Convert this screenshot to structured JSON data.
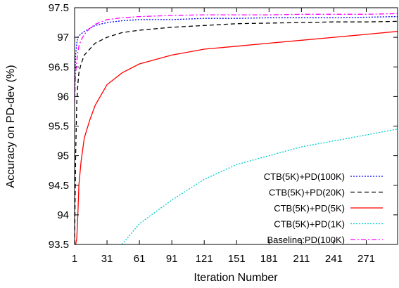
{
  "chart_data": {
    "type": "line",
    "xlabel": "Iteration Number",
    "ylabel": "Accuracy on PD-dev (%)",
    "xlim": [
      1,
      300
    ],
    "ylim": [
      93.5,
      97.5
    ],
    "x_ticks": [
      1,
      31,
      61,
      91,
      121,
      151,
      181,
      211,
      241,
      271
    ],
    "y_ticks": [
      93.5,
      94,
      94.5,
      95,
      95.5,
      96,
      96.5,
      97,
      97.5
    ],
    "x_tick_labels": [
      "1",
      "31",
      "61",
      "91",
      "121",
      "151",
      "181",
      "211",
      "241",
      "271"
    ],
    "y_tick_labels": [
      "93.5",
      "94",
      "94.5",
      "95",
      "95.5",
      "96",
      "96.5",
      "97",
      "97.5"
    ],
    "grid": false,
    "legend_position": "bottom-right",
    "x": [
      1,
      2,
      3,
      4,
      5,
      7,
      10,
      15,
      20,
      31,
      45,
      61,
      91,
      121,
      151,
      181,
      211,
      241,
      271,
      300
    ],
    "series": [
      {
        "name": "CTB(5K)+PD(100K)",
        "color": "#0000ff",
        "dash": "dotted",
        "values": [
          96.0,
          96.7,
          96.9,
          97.0,
          97.02,
          97.06,
          97.1,
          97.15,
          97.2,
          97.25,
          97.28,
          97.3,
          97.3,
          97.32,
          97.32,
          97.33,
          97.33,
          97.33,
          97.34,
          97.35
        ]
      },
      {
        "name": "CTB(5K)+PD(20K)",
        "color": "#000000",
        "dash": "dashed",
        "values": [
          93.5,
          95.0,
          95.9,
          96.2,
          96.4,
          96.55,
          96.7,
          96.8,
          96.9,
          97.0,
          97.08,
          97.12,
          97.17,
          97.2,
          97.23,
          97.24,
          97.25,
          97.26,
          97.26,
          97.27
        ]
      },
      {
        "name": "CTB(5K)+PD(5K)",
        "color": "#ff0000",
        "dash": "solid",
        "values": [
          93.5,
          93.5,
          93.6,
          94.0,
          94.5,
          94.9,
          95.3,
          95.6,
          95.85,
          96.2,
          96.4,
          96.55,
          96.7,
          96.8,
          96.85,
          96.9,
          96.95,
          97.0,
          97.05,
          97.1
        ]
      },
      {
        "name": "CTB(5K)+PD(1K)",
        "color": "#00cccc",
        "dash": "dotted",
        "values": [
          null,
          null,
          null,
          null,
          null,
          null,
          null,
          null,
          null,
          null,
          93.5,
          93.85,
          94.25,
          94.6,
          94.85,
          95.0,
          95.15,
          95.25,
          95.35,
          95.45
        ]
      },
      {
        "name": "Baseline:PD(100K)",
        "color": "#ff00ff",
        "dash": "dash-dot",
        "values": [
          95.9,
          96.4,
          96.6,
          96.75,
          96.85,
          96.95,
          97.05,
          97.15,
          97.22,
          97.3,
          97.33,
          97.35,
          97.37,
          97.38,
          97.38,
          97.38,
          97.39,
          97.39,
          97.39,
          97.4
        ]
      }
    ]
  }
}
